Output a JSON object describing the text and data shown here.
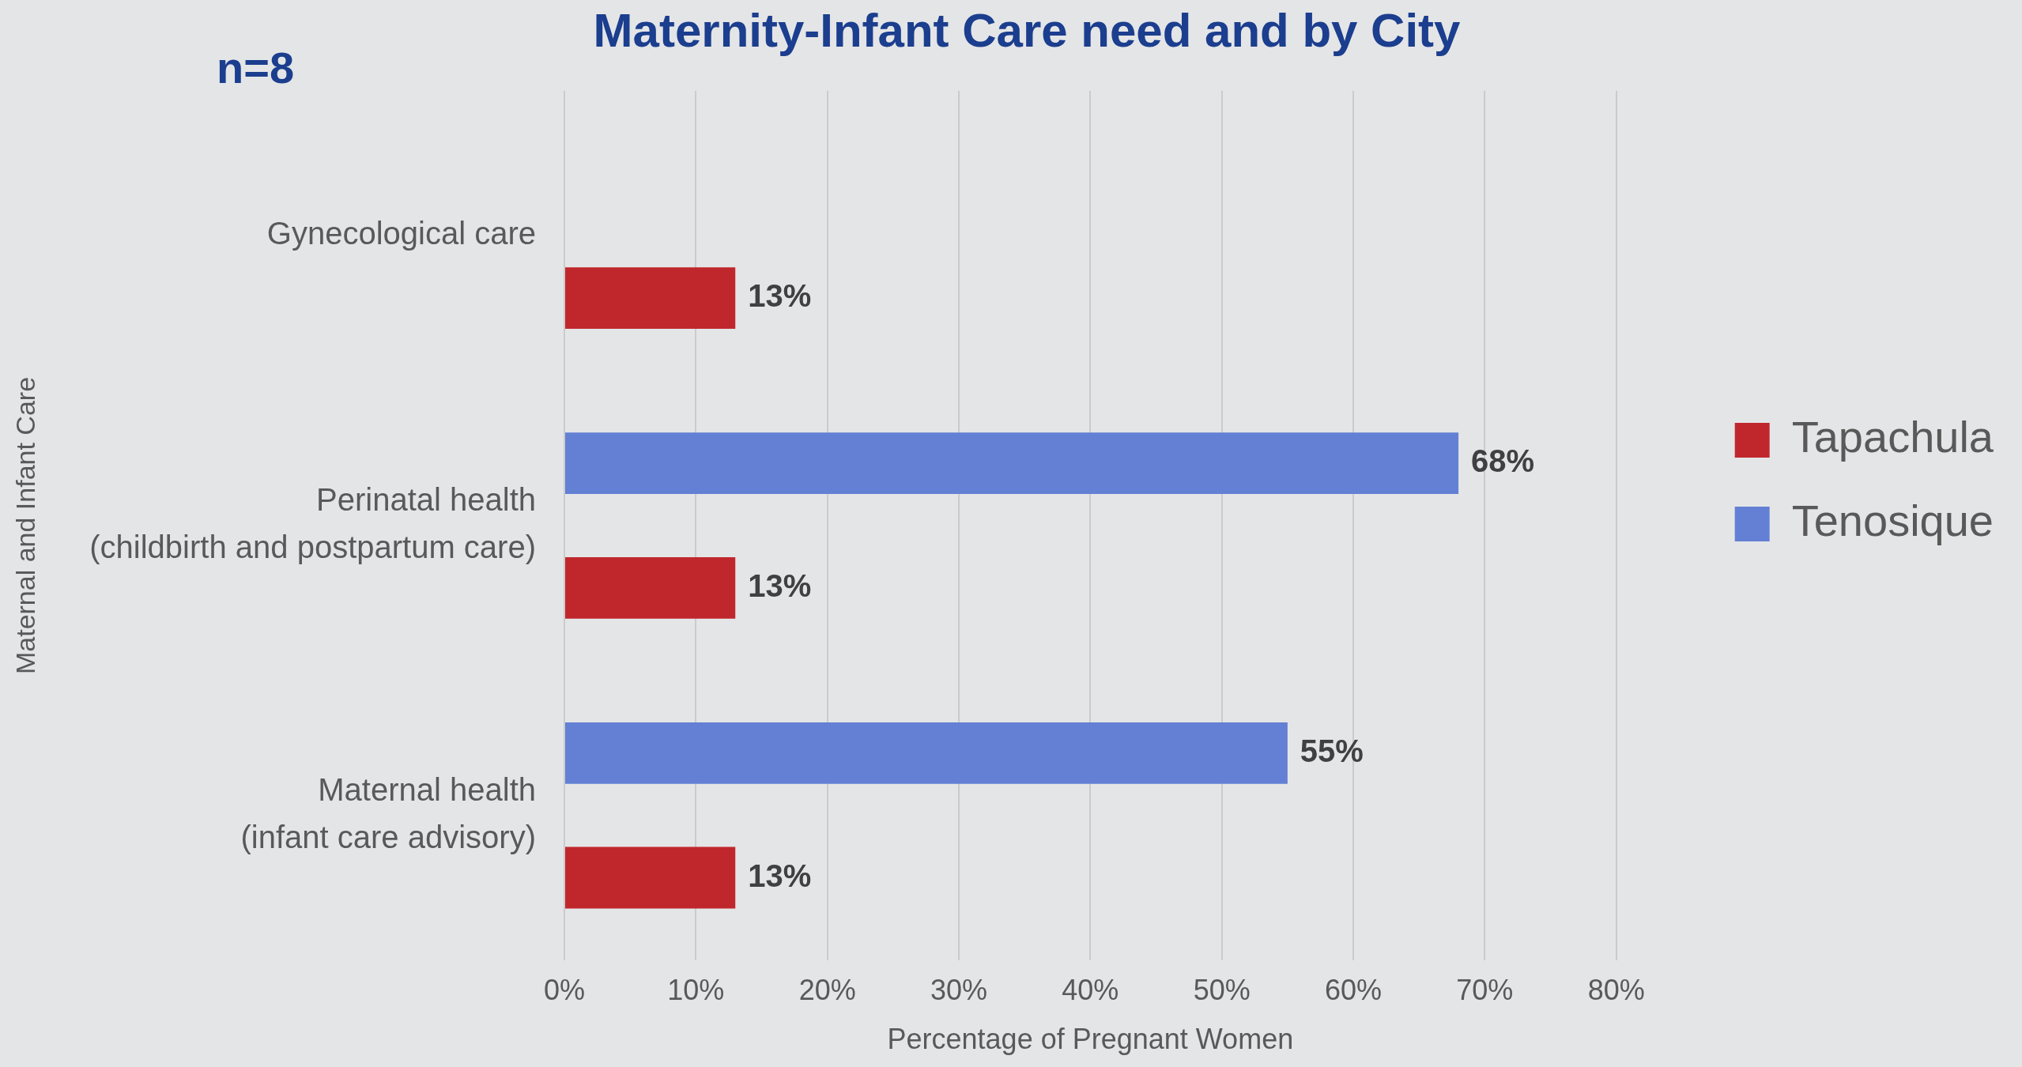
{
  "chart_data": {
    "type": "bar",
    "orientation": "horizontal",
    "title": "Maternity-Infant Care need and by City",
    "subtitle": "n=8",
    "xlabel": "Percentage of Pregnant Women",
    "ylabel": "Maternal and Infant Care",
    "categories": [
      "Gynecological care",
      "Perinatal health\n(childbirth and postpartum care)",
      "Maternal health\n(infant care advisory)"
    ],
    "series": [
      {
        "name": "Tapachula",
        "color": "#c0272d",
        "values": [
          13,
          13,
          13
        ],
        "value_labels": [
          "13%",
          "13%",
          "13%"
        ]
      },
      {
        "name": "Tenosique",
        "color": "#6380d4",
        "values": [
          null,
          68,
          55
        ],
        "value_labels": [
          null,
          "68%",
          "55%"
        ]
      }
    ],
    "xlim": [
      0,
      80
    ],
    "xticks": [
      {
        "value": 0,
        "label": "0%"
      },
      {
        "value": 10,
        "label": "10%"
      },
      {
        "value": 20,
        "label": "20%"
      },
      {
        "value": 30,
        "label": "30%"
      },
      {
        "value": 40,
        "label": "40%"
      },
      {
        "value": 50,
        "label": "50%"
      },
      {
        "value": 60,
        "label": "60%"
      },
      {
        "value": 70,
        "label": "70%"
      },
      {
        "value": 80,
        "label": "80%"
      }
    ],
    "grid": "x",
    "legend": "right"
  }
}
